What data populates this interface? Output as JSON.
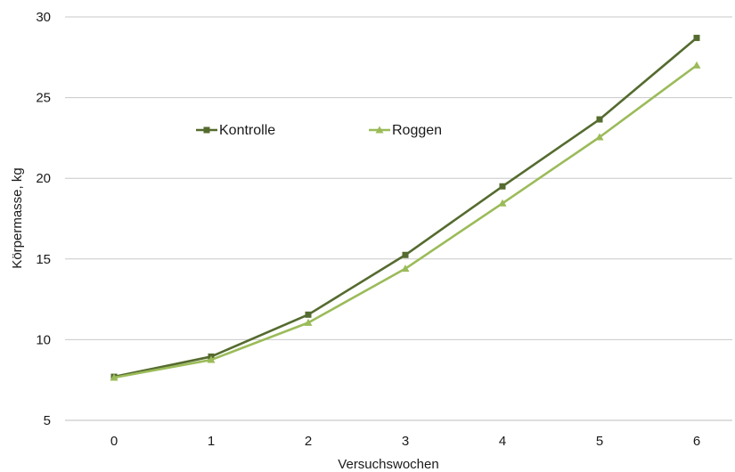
{
  "chart_data": {
    "type": "line",
    "xlabel": "Versuchswochen",
    "ylabel": "Körpermasse, kg",
    "x": [
      0,
      1,
      2,
      3,
      4,
      5,
      6
    ],
    "ylim": [
      5,
      30
    ],
    "yticks": [
      5,
      10,
      15,
      20,
      25,
      30
    ],
    "grid": true,
    "legend_position": "top-left, inside plot",
    "series": [
      {
        "name": "Kontrolle",
        "values": [
          7.7,
          8.95,
          11.55,
          15.25,
          19.5,
          23.65,
          28.7
        ],
        "color": "#556b2f",
        "marker": "square"
      },
      {
        "name": "Roggen",
        "values": [
          7.65,
          8.75,
          11.05,
          14.4,
          18.45,
          22.55,
          27.0
        ],
        "color": "#9bbb59",
        "marker": "triangle"
      }
    ]
  }
}
